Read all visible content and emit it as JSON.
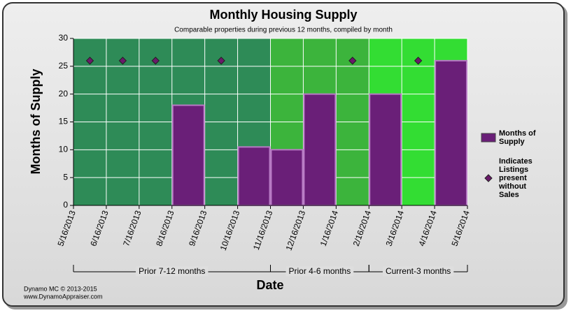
{
  "chart_data": {
    "type": "bar",
    "title": "Monthly Housing Supply",
    "subtitle": "Comparable properties during previous 12 months, compiled by month",
    "y_label": "Months of Supply",
    "x_label": "Date",
    "bin_edges": [
      "5/16/2013",
      "6/16/2013",
      "7/16/2013",
      "8/16/2013",
      "9/16/2013",
      "10/16/2013",
      "11/16/2013",
      "12/16/2013",
      "1/16/2014",
      "2/16/2014",
      "3/16/2014",
      "4/16/2014",
      "5/16/2014"
    ],
    "series": [
      {
        "name": "Months of Supply",
        "kind": "bar",
        "color": "#6a1f78",
        "values": [
          null,
          null,
          null,
          18,
          null,
          10.5,
          10,
          20,
          null,
          20,
          null,
          26
        ]
      },
      {
        "name": "Indicates Listings present without Sales",
        "kind": "marker",
        "color": "#6a1a6a",
        "values": [
          26,
          26,
          26,
          null,
          26,
          null,
          null,
          null,
          26,
          null,
          26,
          null
        ]
      }
    ],
    "periods": [
      {
        "label": "Prior 7-12 months",
        "start": "5/16/2013",
        "end": "11/16/2013",
        "color": "#2e8b57"
      },
      {
        "label": "Prior 4-6 months",
        "start": "11/16/2013",
        "end": "2/16/2014",
        "color": "#3cb43c"
      },
      {
        "label": "Current-3 months",
        "start": "2/16/2014",
        "end": "5/16/2014",
        "color": "#33dd33"
      }
    ],
    "ylim": [
      0,
      30
    ],
    "yticks": [
      0,
      5,
      10,
      15,
      20,
      25,
      30
    ],
    "grid": true,
    "footer": [
      "Dynamo MC   © 2013-2015",
      "www.DynamoAppraiser.com"
    ]
  }
}
